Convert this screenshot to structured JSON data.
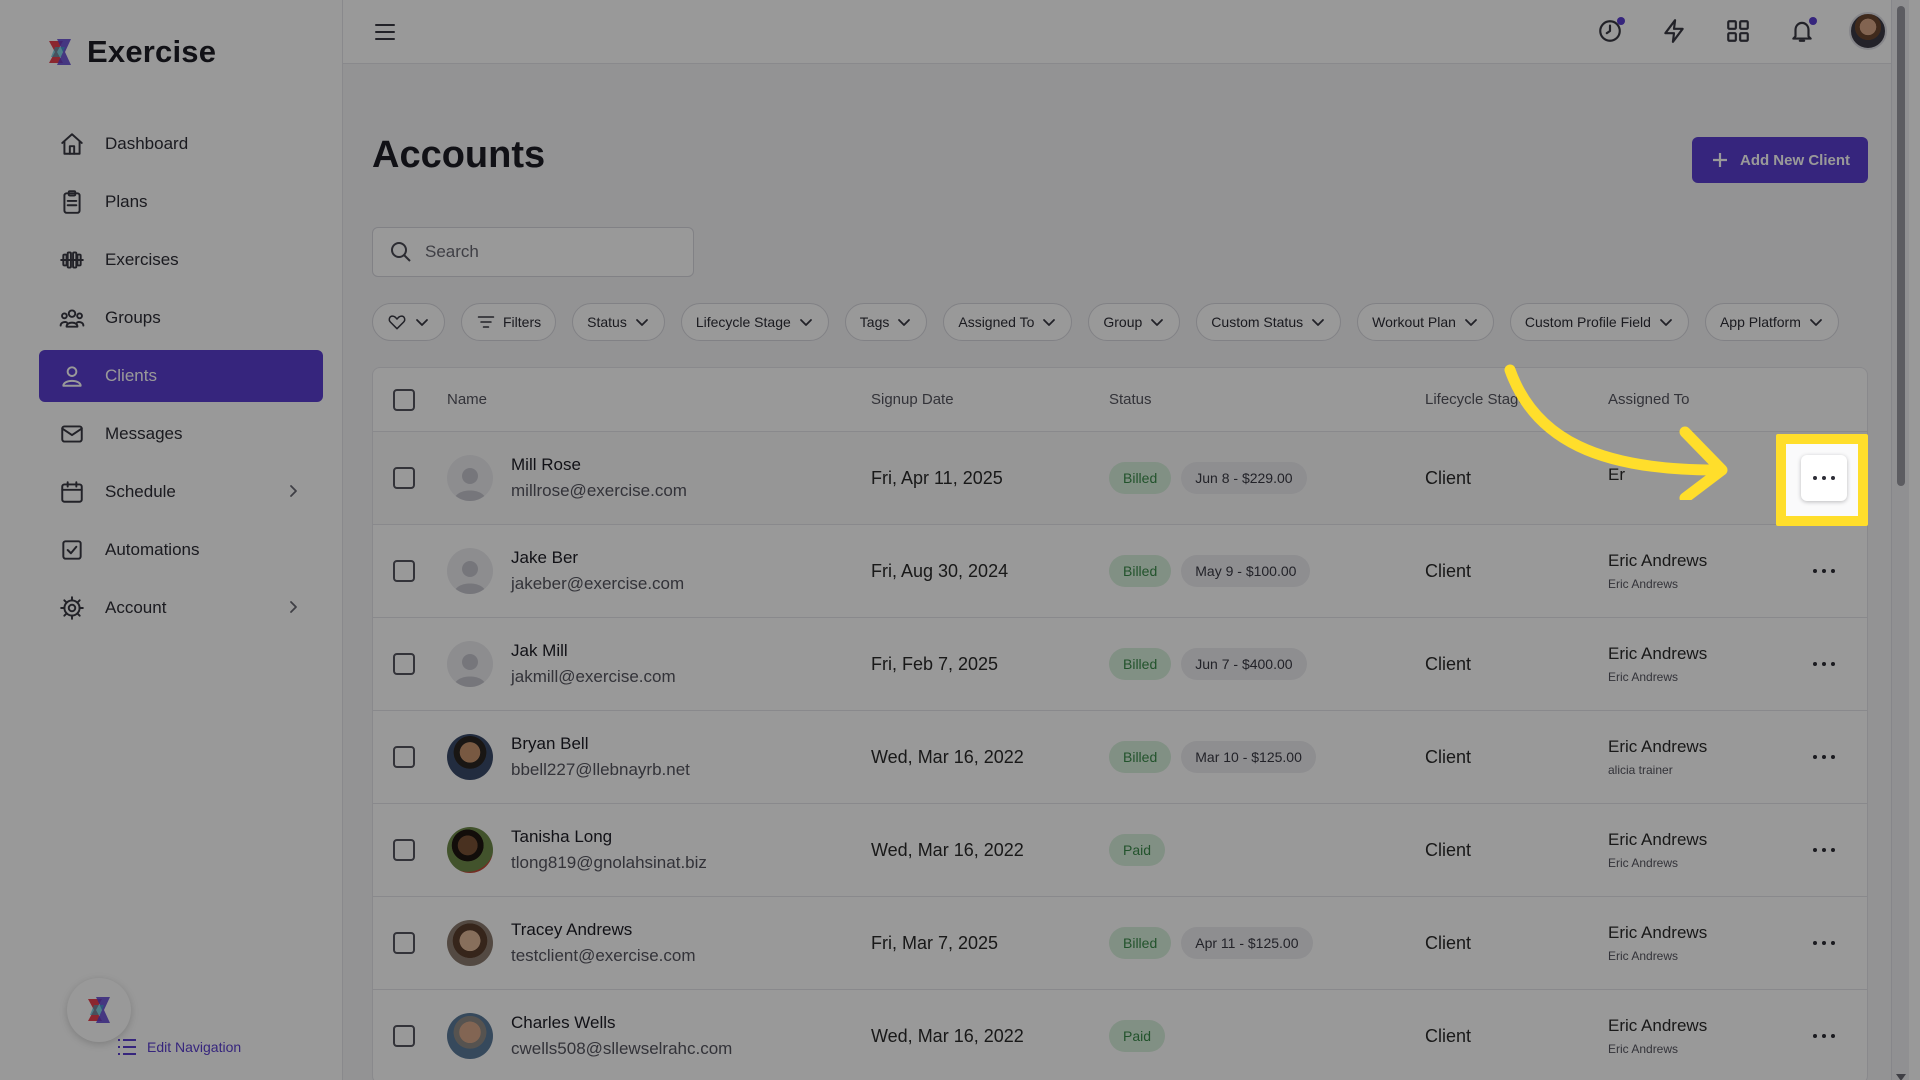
{
  "app": {
    "brand": "Exercise"
  },
  "sidebar": {
    "items": [
      {
        "label": "Dashboard",
        "icon": "home-icon"
      },
      {
        "label": "Plans",
        "icon": "clipboard-icon"
      },
      {
        "label": "Exercises",
        "icon": "dumbbell-icon"
      },
      {
        "label": "Groups",
        "icon": "people-icon"
      },
      {
        "label": "Clients",
        "icon": "user-icon",
        "active": true
      },
      {
        "label": "Messages",
        "icon": "mail-icon"
      },
      {
        "label": "Schedule",
        "icon": "calendar-icon",
        "has_submenu": true
      },
      {
        "label": "Automations",
        "icon": "checkbox-icon"
      },
      {
        "label": "Account",
        "icon": "gear-icon",
        "has_submenu": true
      }
    ],
    "edit_nav_label": "Edit Navigation"
  },
  "header": {
    "icons": [
      "clock-icon",
      "lightning-icon",
      "grid-icon",
      "bell-icon",
      "avatar"
    ]
  },
  "page": {
    "title": "Accounts",
    "add_button_label": "Add New Client",
    "search_placeholder": "Search"
  },
  "filters": [
    "Filters",
    "Status",
    "Lifecycle Stage",
    "Tags",
    "Assigned To",
    "Group",
    "Custom Status",
    "Workout Plan",
    "Custom Profile Field",
    "App Platform"
  ],
  "table": {
    "headers": {
      "name": "Name",
      "signup": "Signup Date",
      "status": "Status",
      "lifecycle": "Lifecycle Stage",
      "assigned": "Assigned To"
    },
    "rows": [
      {
        "name": "Mill Rose",
        "email": "millrose@exercise.com",
        "signup": "Fri, Apr 11, 2025",
        "status": "Billed",
        "period": "Jun 8 - $229.00",
        "lifecycle": "Client",
        "assigned": "Er",
        "assigned_sub": ""
      },
      {
        "name": "Jake Ber",
        "email": "jakeber@exercise.com",
        "signup": "Fri, Aug 30, 2024",
        "status": "Billed",
        "period": "May 9 - $100.00",
        "lifecycle": "Client",
        "assigned": "Eric Andrews",
        "assigned_sub": "Eric Andrews"
      },
      {
        "name": "Jak Mill",
        "email": "jakmill@exercise.com",
        "signup": "Fri, Feb 7, 2025",
        "status": "Billed",
        "period": "Jun 7 - $400.00",
        "lifecycle": "Client",
        "assigned": "Eric Andrews",
        "assigned_sub": "Eric Andrews"
      },
      {
        "name": "Bryan Bell",
        "email": "bbell227@llebnayrb.net",
        "signup": "Wed, Mar 16, 2022",
        "status": "Billed",
        "period": "Mar 10 - $125.00",
        "lifecycle": "Client",
        "assigned": "Eric Andrews",
        "assigned_sub": "alicia trainer"
      },
      {
        "name": "Tanisha Long",
        "email": "tlong819@gnolahsinat.biz",
        "signup": "Wed, Mar 16, 2022",
        "status": "Paid",
        "period": "",
        "lifecycle": "Client",
        "assigned": "Eric Andrews",
        "assigned_sub": "Eric Andrews"
      },
      {
        "name": "Tracey Andrews",
        "email": "testclient@exercise.com",
        "signup": "Fri, Mar 7, 2025",
        "status": "Billed",
        "period": "Apr 11 - $125.00",
        "lifecycle": "Client",
        "assigned": "Eric Andrews",
        "assigned_sub": "Eric Andrews"
      },
      {
        "name": "Charles Wells",
        "email": "cwells508@sllewselrahc.com",
        "signup": "Wed, Mar 16, 2022",
        "status": "Paid",
        "period": "",
        "lifecycle": "Client",
        "assigned": "Eric Andrews",
        "assigned_sub": "Eric Andrews"
      }
    ]
  },
  "colors": {
    "accent": "#5b3fd0",
    "highlight": "#ffde2b",
    "status_green": "#3a8a4a"
  }
}
